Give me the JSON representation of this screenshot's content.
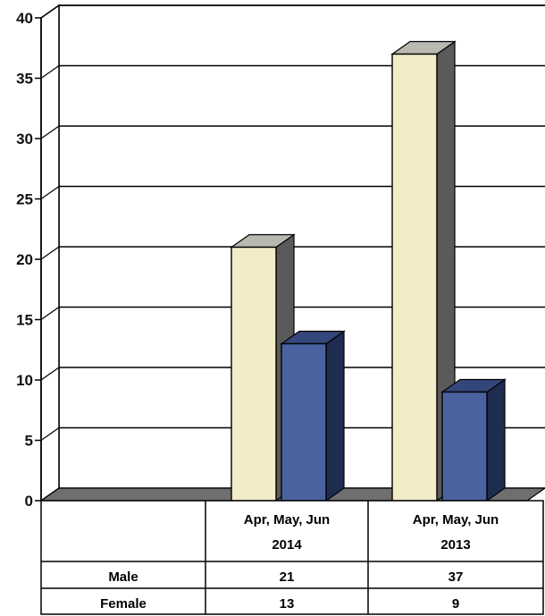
{
  "chart_data": {
    "type": "bar",
    "title": "",
    "xlabel": "",
    "ylabel": "",
    "ylim": [
      0,
      40
    ],
    "y_ticks": [
      0,
      5,
      10,
      15,
      20,
      25,
      30,
      35,
      40
    ],
    "grid": true,
    "three_d": true,
    "categories": [
      {
        "line1": "",
        "line2": ""
      },
      {
        "line1": "Apr, May, Jun",
        "line2": "2014"
      },
      {
        "line1": "Apr, May, Jun",
        "line2": "2013"
      }
    ],
    "series": [
      {
        "name": "Male",
        "values": [
          null,
          21,
          37
        ],
        "color": "#f3ecc8"
      },
      {
        "name": "Female",
        "values": [
          null,
          13,
          9
        ],
        "color": "#4a63a0"
      }
    ],
    "data_table": true
  }
}
